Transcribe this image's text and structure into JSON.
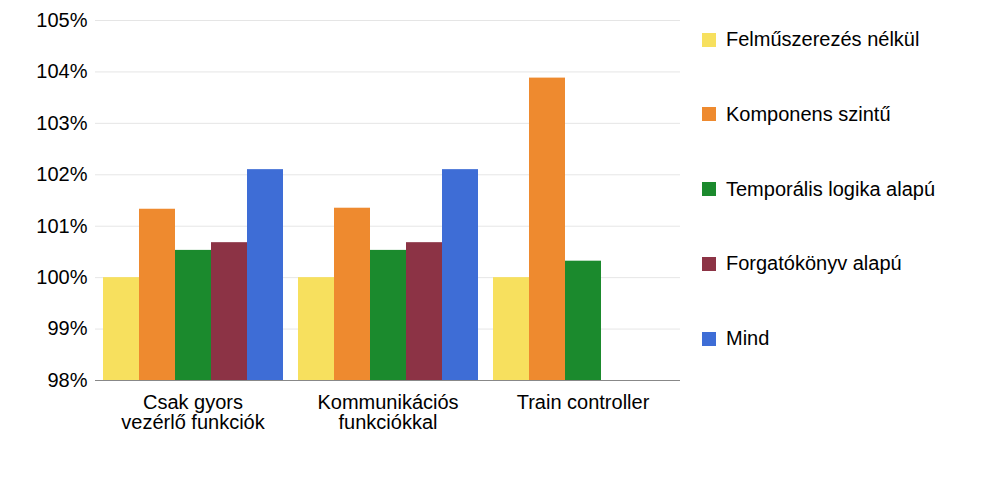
{
  "chart_data": {
    "type": "bar",
    "categories": [
      "Csak gyors\nvezérlő funkciók",
      "Kommunikációs\nfunkciókkal",
      "Train controller"
    ],
    "series": [
      {
        "name": "Felműszerezés nélkül",
        "color": "#f7e05e",
        "values": [
          100,
          100,
          100
        ]
      },
      {
        "name": "Komponens szintű",
        "color": "#ee8a2f",
        "values": [
          101.33,
          101.35,
          103.88
        ]
      },
      {
        "name": "Temporális logika alapú",
        "color": "#1b8a2d",
        "values": [
          100.53,
          100.53,
          100.32
        ]
      },
      {
        "name": "Forgatókönyv alapú",
        "color": "#8c3345",
        "values": [
          100.68,
          100.68,
          null
        ]
      },
      {
        "name": "Mind",
        "color": "#3e6dd6",
        "values": [
          102.1,
          102.1,
          null
        ]
      }
    ],
    "ylim": [
      98,
      105
    ],
    "yticks": [
      {
        "value": 98,
        "label": "98%"
      },
      {
        "value": 99,
        "label": "99%"
      },
      {
        "value": 100,
        "label": "100%"
      },
      {
        "value": 101,
        "label": "101%"
      },
      {
        "value": 102,
        "label": "102%"
      },
      {
        "value": 103,
        "label": "103%"
      },
      {
        "value": 104,
        "label": "104%"
      },
      {
        "value": 105,
        "label": "105%"
      }
    ],
    "grid": true,
    "legend": "right"
  }
}
